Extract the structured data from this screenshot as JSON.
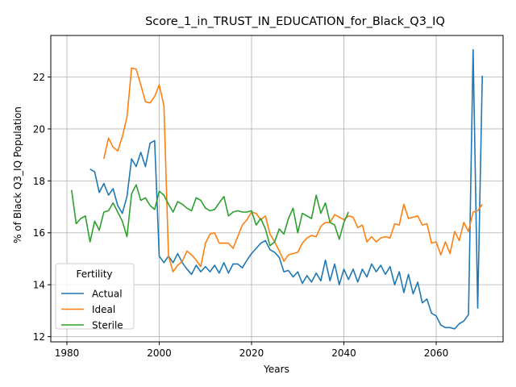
{
  "chart_data": {
    "type": "line",
    "title": "Score_1_in_TRUST_IN_EDUCATION_for_Black_Q3_IQ",
    "xlabel": "Years",
    "ylabel": "% of Black Q3_IQ Population",
    "xlim": [
      1976.5,
      2074.5
    ],
    "ylim": [
      11.8,
      23.6
    ],
    "xticks": [
      1980,
      2000,
      2020,
      2040,
      2060
    ],
    "yticks": [
      12,
      14,
      16,
      18,
      20,
      22
    ],
    "grid": true,
    "legend": {
      "title": "Fertility",
      "placement": "lower-left"
    },
    "series": [
      {
        "name": "Actual",
        "color": "#1f77b4",
        "x": [
          1985,
          1986,
          1987,
          1988,
          1989,
          1990,
          1991,
          1992,
          1993,
          1994,
          1995,
          1996,
          1997,
          1998,
          1999,
          2000,
          2001,
          2002,
          2003,
          2004,
          2005,
          2006,
          2007,
          2008,
          2009,
          2010,
          2011,
          2012,
          2013,
          2014,
          2015,
          2016,
          2017,
          2018,
          2019,
          2020,
          2021,
          2022,
          2023,
          2024,
          2025,
          2026,
          2027,
          2028,
          2029,
          2030,
          2031,
          2032,
          2033,
          2034,
          2035,
          2036,
          2037,
          2038,
          2039,
          2040,
          2041,
          2042,
          2043,
          2044,
          2045,
          2046,
          2047,
          2048,
          2049,
          2050,
          2051,
          2052,
          2053,
          2054,
          2055,
          2056,
          2057,
          2058,
          2059,
          2060,
          2061,
          2062,
          2063,
          2064,
          2065,
          2066,
          2067,
          2068,
          2069,
          2070
        ],
        "y": [
          18.45,
          18.35,
          17.55,
          17.9,
          17.45,
          17.7,
          17.05,
          16.75,
          17.4,
          18.85,
          18.55,
          19.1,
          18.55,
          19.45,
          19.55,
          15.1,
          14.85,
          15.1,
          14.85,
          15.2,
          14.85,
          14.6,
          14.4,
          14.75,
          14.5,
          14.7,
          14.5,
          14.75,
          14.45,
          14.85,
          14.45,
          14.8,
          14.8,
          14.65,
          14.95,
          15.2,
          15.4,
          15.6,
          15.7,
          15.35,
          15.25,
          15.05,
          14.5,
          14.55,
          14.3,
          14.5,
          14.05,
          14.35,
          14.1,
          14.45,
          14.15,
          14.95,
          14.15,
          14.8,
          14.0,
          14.6,
          14.2,
          14.6,
          14.1,
          14.6,
          14.3,
          14.8,
          14.5,
          14.75,
          14.4,
          14.7,
          14.0,
          14.5,
          13.7,
          14.4,
          13.65,
          14.1,
          13.3,
          13.45,
          12.9,
          12.8,
          12.45,
          12.35,
          12.35,
          12.3,
          12.5,
          12.6,
          12.85,
          23.05,
          13.1,
          22.05
        ]
      },
      {
        "name": "Ideal",
        "color": "#ff7f0e",
        "x": [
          1988,
          1989,
          1990,
          1991,
          1992,
          1993,
          1994,
          1995,
          1996,
          1997,
          1998,
          1999,
          2000,
          2001,
          2002,
          2003,
          2004,
          2005,
          2006,
          2007,
          2008,
          2009,
          2010,
          2011,
          2012,
          2013,
          2014,
          2015,
          2016,
          2017,
          2018,
          2019,
          2020,
          2021,
          2022,
          2023,
          2024,
          2025,
          2026,
          2027,
          2028,
          2029,
          2030,
          2031,
          2032,
          2033,
          2034,
          2035,
          2036,
          2037,
          2038,
          2039,
          2040,
          2041,
          2042,
          2043,
          2044,
          2045,
          2046,
          2047,
          2048,
          2049,
          2050,
          2051,
          2052,
          2053,
          2054,
          2055,
          2056,
          2057,
          2058,
          2059,
          2060,
          2061,
          2062,
          2063,
          2064,
          2065,
          2066,
          2067,
          2068,
          2069,
          2070
        ],
        "y": [
          18.85,
          19.65,
          19.3,
          19.15,
          19.7,
          20.45,
          22.35,
          22.3,
          21.7,
          21.05,
          21.0,
          21.25,
          21.7,
          20.9,
          15.1,
          14.5,
          14.75,
          14.9,
          15.3,
          15.15,
          14.95,
          14.7,
          15.6,
          15.95,
          16.0,
          15.6,
          15.6,
          15.6,
          15.4,
          15.85,
          16.3,
          16.5,
          16.8,
          16.75,
          16.5,
          16.65,
          15.95,
          15.65,
          15.3,
          14.9,
          15.15,
          15.2,
          15.25,
          15.6,
          15.8,
          15.9,
          15.85,
          16.25,
          16.4,
          16.4,
          16.7,
          16.6,
          16.5,
          16.65,
          16.6,
          16.2,
          16.3,
          15.65,
          15.85,
          15.65,
          15.8,
          15.85,
          15.8,
          16.35,
          16.3,
          17.1,
          16.55,
          16.6,
          16.65,
          16.3,
          16.35,
          15.6,
          15.65,
          15.15,
          15.65,
          15.2,
          16.05,
          15.7,
          16.4,
          16.05,
          16.8,
          16.85,
          17.1
        ]
      },
      {
        "name": "Sterile",
        "color": "#2ca02c",
        "x": [
          1981,
          1982,
          1983,
          1984,
          1985,
          1986,
          1987,
          1988,
          1989,
          1990,
          1991,
          1992,
          1993,
          1994,
          1995,
          1996,
          1997,
          1998,
          1999,
          2000,
          2001,
          2002,
          2003,
          2004,
          2005,
          2006,
          2007,
          2008,
          2009,
          2010,
          2011,
          2012,
          2013,
          2014,
          2015,
          2016,
          2017,
          2018,
          2019,
          2020,
          2021,
          2022,
          2023,
          2024,
          2025,
          2026,
          2027,
          2028,
          2029,
          2030,
          2031,
          2032,
          2033,
          2034,
          2035,
          2036,
          2037,
          2038,
          2039,
          2040,
          2041
        ],
        "y": [
          17.65,
          16.35,
          16.55,
          16.65,
          15.65,
          16.45,
          16.1,
          16.8,
          16.85,
          17.15,
          16.8,
          16.45,
          15.85,
          17.5,
          17.85,
          17.25,
          17.35,
          17.05,
          16.9,
          17.6,
          17.45,
          17.1,
          16.8,
          17.2,
          17.1,
          16.95,
          16.85,
          17.35,
          17.25,
          16.95,
          16.85,
          16.9,
          17.15,
          17.4,
          16.65,
          16.8,
          16.85,
          16.8,
          16.8,
          16.85,
          16.3,
          16.55,
          16.15,
          15.5,
          15.65,
          16.15,
          15.95,
          16.55,
          16.95,
          16.0,
          16.75,
          16.65,
          16.55,
          17.45,
          16.75,
          17.15,
          16.4,
          16.3,
          15.75,
          16.4,
          16.8
        ]
      }
    ]
  }
}
